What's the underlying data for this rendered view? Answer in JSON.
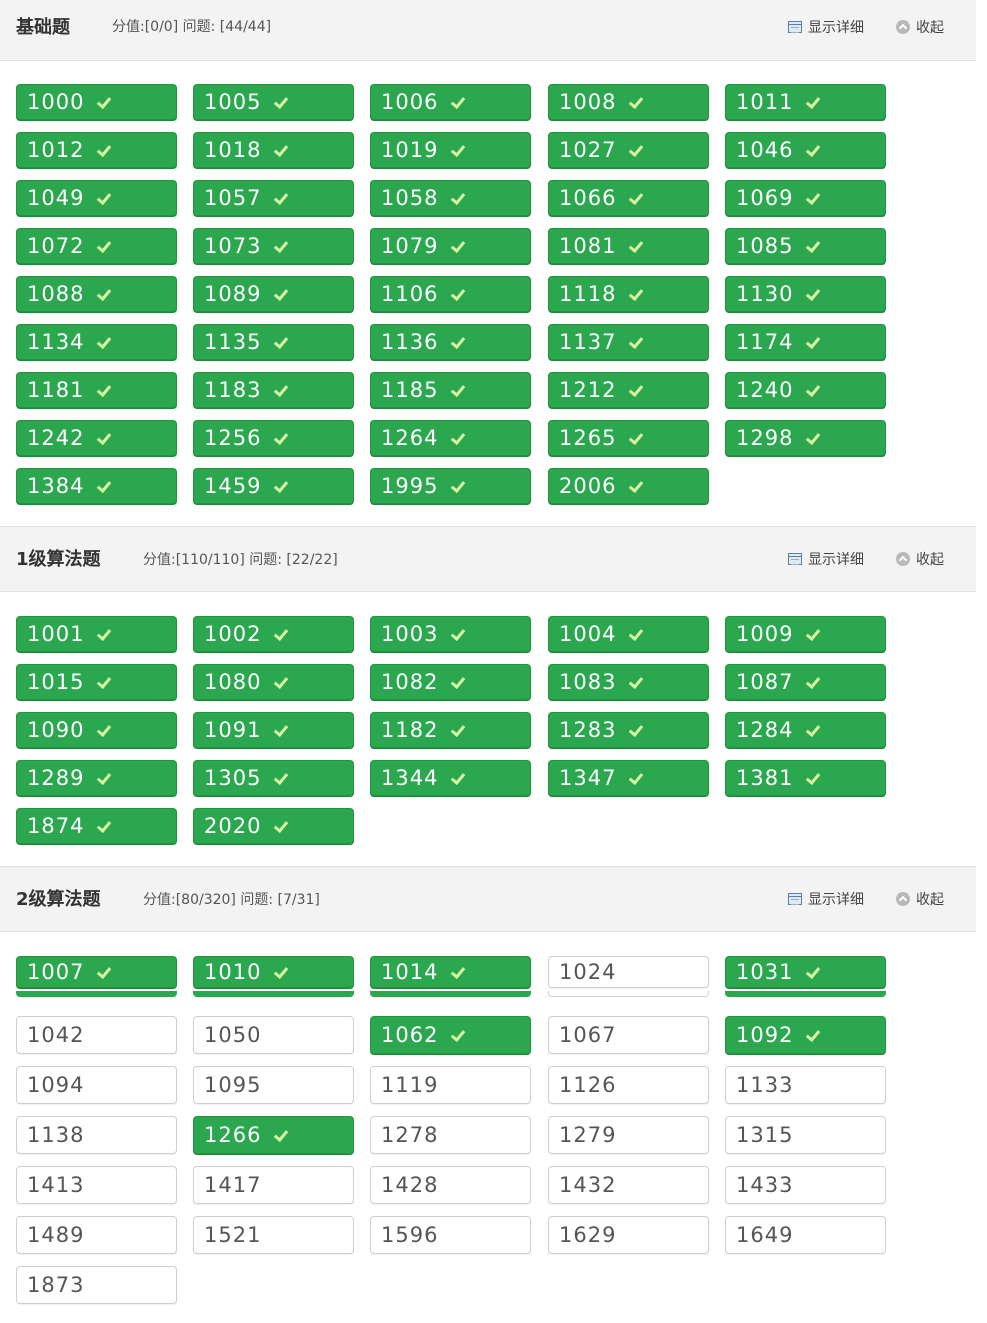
{
  "sections": [
    {
      "title": "基础题",
      "stats": "分值:[0/0]  问题: [44/44]",
      "show_details": "显示详细",
      "collapse": "收起",
      "problems": [
        {
          "id": "1000",
          "solved": true
        },
        {
          "id": "1005",
          "solved": true
        },
        {
          "id": "1006",
          "solved": true
        },
        {
          "id": "1008",
          "solved": true
        },
        {
          "id": "1011",
          "solved": true
        },
        {
          "id": "1012",
          "solved": true
        },
        {
          "id": "1018",
          "solved": true
        },
        {
          "id": "1019",
          "solved": true
        },
        {
          "id": "1027",
          "solved": true
        },
        {
          "id": "1046",
          "solved": true
        },
        {
          "id": "1049",
          "solved": true
        },
        {
          "id": "1057",
          "solved": true
        },
        {
          "id": "1058",
          "solved": true
        },
        {
          "id": "1066",
          "solved": true
        },
        {
          "id": "1069",
          "solved": true
        },
        {
          "id": "1072",
          "solved": true
        },
        {
          "id": "1073",
          "solved": true
        },
        {
          "id": "1079",
          "solved": true
        },
        {
          "id": "1081",
          "solved": true
        },
        {
          "id": "1085",
          "solved": true
        },
        {
          "id": "1088",
          "solved": true
        },
        {
          "id": "1089",
          "solved": true
        },
        {
          "id": "1106",
          "solved": true
        },
        {
          "id": "1118",
          "solved": true
        },
        {
          "id": "1130",
          "solved": true
        },
        {
          "id": "1134",
          "solved": true
        },
        {
          "id": "1135",
          "solved": true
        },
        {
          "id": "1136",
          "solved": true
        },
        {
          "id": "1137",
          "solved": true
        },
        {
          "id": "1174",
          "solved": true
        },
        {
          "id": "1181",
          "solved": true
        },
        {
          "id": "1183",
          "solved": true
        },
        {
          "id": "1185",
          "solved": true
        },
        {
          "id": "1212",
          "solved": true
        },
        {
          "id": "1240",
          "solved": true
        },
        {
          "id": "1242",
          "solved": true
        },
        {
          "id": "1256",
          "solved": true
        },
        {
          "id": "1264",
          "solved": true
        },
        {
          "id": "1265",
          "solved": true
        },
        {
          "id": "1298",
          "solved": true
        },
        {
          "id": "1384",
          "solved": true
        },
        {
          "id": "1459",
          "solved": true
        },
        {
          "id": "1995",
          "solved": true
        },
        {
          "id": "2006",
          "solved": true
        }
      ]
    },
    {
      "title": "1级算法题",
      "stats": "分值:[110/110]  问题: [22/22]",
      "show_details": "显示详细",
      "collapse": "收起",
      "problems": [
        {
          "id": "1001",
          "solved": true
        },
        {
          "id": "1002",
          "solved": true
        },
        {
          "id": "1003",
          "solved": true
        },
        {
          "id": "1004",
          "solved": true
        },
        {
          "id": "1009",
          "solved": true
        },
        {
          "id": "1015",
          "solved": true
        },
        {
          "id": "1080",
          "solved": true
        },
        {
          "id": "1082",
          "solved": true
        },
        {
          "id": "1083",
          "solved": true
        },
        {
          "id": "1087",
          "solved": true
        },
        {
          "id": "1090",
          "solved": true
        },
        {
          "id": "1091",
          "solved": true
        },
        {
          "id": "1182",
          "solved": true
        },
        {
          "id": "1283",
          "solved": true
        },
        {
          "id": "1284",
          "solved": true
        },
        {
          "id": "1289",
          "solved": true
        },
        {
          "id": "1305",
          "solved": true
        },
        {
          "id": "1344",
          "solved": true
        },
        {
          "id": "1347",
          "solved": true
        },
        {
          "id": "1381",
          "solved": true
        },
        {
          "id": "1874",
          "solved": true
        },
        {
          "id": "2020",
          "solved": true
        }
      ]
    },
    {
      "title": "2级算法题",
      "stats": "分值:[80/320]  问题: [7/31]",
      "show_details": "显示详细",
      "collapse": "收起",
      "problems": [
        {
          "id": "1007",
          "solved": true
        },
        {
          "id": "1010",
          "solved": true
        },
        {
          "id": "1014",
          "solved": true
        },
        {
          "id": "1024",
          "solved": false
        },
        {
          "id": "1031",
          "solved": true
        },
        {
          "id": "1042",
          "solved": false
        },
        {
          "id": "1050",
          "solved": false
        },
        {
          "id": "1062",
          "solved": true
        },
        {
          "id": "1067",
          "solved": false
        },
        {
          "id": "1092",
          "solved": true
        },
        {
          "id": "1094",
          "solved": false
        },
        {
          "id": "1095",
          "solved": false
        },
        {
          "id": "1119",
          "solved": false
        },
        {
          "id": "1126",
          "solved": false
        },
        {
          "id": "1133",
          "solved": false
        },
        {
          "id": "1138",
          "solved": false
        },
        {
          "id": "1266",
          "solved": true
        },
        {
          "id": "1278",
          "solved": false
        },
        {
          "id": "1279",
          "solved": false
        },
        {
          "id": "1315",
          "solved": false
        },
        {
          "id": "1413",
          "solved": false
        },
        {
          "id": "1417",
          "solved": false
        },
        {
          "id": "1428",
          "solved": false
        },
        {
          "id": "1432",
          "solved": false
        },
        {
          "id": "1433",
          "solved": false
        },
        {
          "id": "1489",
          "solved": false
        },
        {
          "id": "1521",
          "solved": false
        },
        {
          "id": "1596",
          "solved": false
        },
        {
          "id": "1629",
          "solved": false
        },
        {
          "id": "1649",
          "solved": false
        },
        {
          "id": "1873",
          "solved": false
        }
      ]
    }
  ],
  "colors": {
    "solved": "#2ba84f",
    "unsolved_border": "#cfcfcf",
    "header_bg": "#f3f3f3"
  },
  "icons": {
    "show_details": "table-icon",
    "collapse": "chevron-up-circle-icon",
    "solved_mark": "checkmark-icon"
  }
}
